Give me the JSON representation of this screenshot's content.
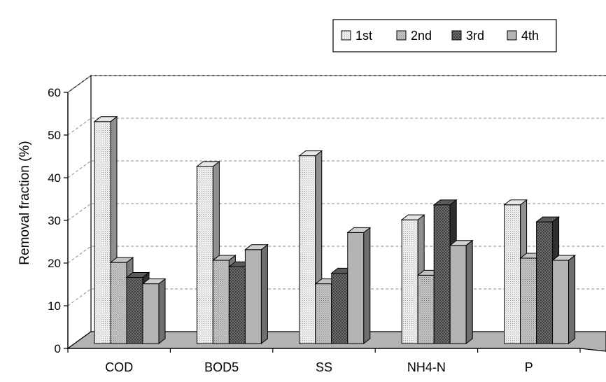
{
  "chart_data": {
    "type": "bar",
    "style": "3d-clustered-column",
    "title": "",
    "xlabel": "",
    "ylabel": "Removal fraction (%)",
    "ylim": [
      0,
      60
    ],
    "yticks": [
      0,
      10,
      20,
      30,
      40,
      50,
      60
    ],
    "grid": "dashed-horizontal",
    "legend_position": "top-right",
    "categories": [
      "COD",
      "BOD5",
      "SS",
      "NH4-N",
      "P"
    ],
    "series": [
      {
        "name": "1st",
        "values": [
          52,
          41.5,
          44,
          29,
          32.5
        ],
        "pattern": "white-dotted"
      },
      {
        "name": "2nd",
        "values": [
          19,
          19.5,
          14,
          16,
          20
        ],
        "pattern": "light-gray-dotted"
      },
      {
        "name": "3rd",
        "values": [
          15.5,
          18,
          16.5,
          32.5,
          28.5
        ],
        "pattern": "dark-checked"
      },
      {
        "name": "4th",
        "values": [
          14,
          22,
          26,
          23,
          19.5
        ],
        "pattern": "gray"
      }
    ]
  }
}
